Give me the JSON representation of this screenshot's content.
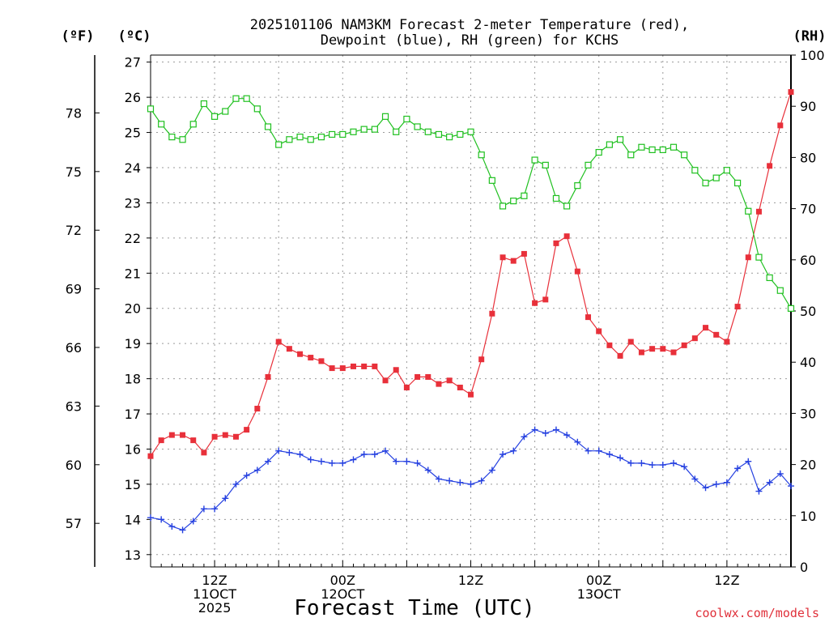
{
  "chart_data": {
    "type": "line",
    "title_line1": "2025101106 NAM3KM Forecast 2-meter Temperature (red),",
    "title_line2": "Dewpoint (blue), RH (green) for KCHS",
    "xlabel": "Forecast Time (UTC)",
    "credit": "coolwx.com/models",
    "unit_f": "(ºF)",
    "unit_c": "(ºC)",
    "unit_rh": "(RH)",
    "x_start_hour": 6,
    "x_end_hour": 66,
    "x_ticks": [
      {
        "hour": 12,
        "lines": [
          "12Z",
          "11OCT",
          "2025"
        ]
      },
      {
        "hour": 24,
        "lines": [
          "00Z",
          "12OCT"
        ]
      },
      {
        "hour": 36,
        "lines": [
          "12Z"
        ]
      },
      {
        "hour": 48,
        "lines": [
          "00Z",
          "13OCT"
        ]
      },
      {
        "hour": 60,
        "lines": [
          "12Z"
        ]
      }
    ],
    "ylim_c": [
      12.65,
      27.2
    ],
    "yticks_c": [
      13,
      14,
      15,
      16,
      17,
      18,
      19,
      20,
      21,
      22,
      23,
      24,
      25,
      26,
      27
    ],
    "yticks_f": [
      57,
      60,
      63,
      66,
      69,
      72,
      75,
      78
    ],
    "ylim_rh": [
      0,
      100
    ],
    "yticks_rh": [
      0,
      10,
      20,
      30,
      40,
      50,
      60,
      70,
      80,
      90,
      100
    ],
    "series": [
      {
        "name": "2-meter Temperature",
        "unit": "C",
        "color": "#e8303a",
        "marker": "filled-square",
        "values": [
          15.8,
          16.25,
          16.4,
          16.4,
          16.25,
          15.9,
          16.35,
          16.4,
          16.35,
          16.55,
          17.15,
          18.05,
          19.05,
          18.85,
          18.7,
          18.6,
          18.5,
          18.3,
          18.3,
          18.35,
          18.35,
          18.35,
          17.95,
          18.25,
          17.75,
          18.05,
          18.05,
          17.85,
          17.95,
          17.75,
          17.55,
          18.55,
          19.85,
          21.45,
          21.35,
          21.55,
          20.15,
          20.25,
          21.85,
          22.05,
          21.05,
          19.75,
          19.35,
          18.95,
          18.65,
          19.05,
          18.75,
          18.85,
          18.85,
          18.75,
          18.95,
          19.15,
          19.45,
          19.25,
          19.05,
          20.05,
          21.45,
          22.75,
          24.05,
          25.2,
          26.15
        ]
      },
      {
        "name": "Dewpoint",
        "unit": "C",
        "color": "#2540e0",
        "marker": "plus",
        "values": [
          14.05,
          14,
          13.8,
          13.7,
          13.95,
          14.3,
          14.3,
          14.6,
          15,
          15.25,
          15.4,
          15.65,
          15.95,
          15.9,
          15.85,
          15.7,
          15.65,
          15.6,
          15.6,
          15.7,
          15.85,
          15.85,
          15.95,
          15.65,
          15.65,
          15.6,
          15.4,
          15.15,
          15.1,
          15.05,
          15,
          15.1,
          15.4,
          15.85,
          15.95,
          16.35,
          16.55,
          16.45,
          16.55,
          16.4,
          16.2,
          15.95,
          15.95,
          15.85,
          15.75,
          15.6,
          15.6,
          15.55,
          15.55,
          15.6,
          15.5,
          15.15,
          14.9,
          15,
          15.05,
          15.45,
          15.65,
          14.8,
          15.05,
          15.3,
          14.95
        ]
      },
      {
        "name": "Relative Humidity",
        "unit": "%",
        "color": "#20c020",
        "marker": "open-square",
        "values": [
          89.5,
          86.5,
          84,
          83.5,
          86.5,
          90.5,
          88,
          89,
          91.5,
          91.5,
          89.5,
          86,
          82.5,
          83.5,
          84,
          83.5,
          84,
          84.5,
          84.5,
          85,
          85.5,
          85.5,
          88,
          85,
          87.5,
          86,
          85,
          84.5,
          84,
          84.5,
          85,
          80.5,
          75.5,
          70.5,
          71.5,
          72.5,
          79.5,
          78.5,
          72,
          70.5,
          74.5,
          78.5,
          81,
          82.5,
          83.5,
          80.5,
          82,
          81.5,
          81.5,
          82,
          80.5,
          77.5,
          75,
          76,
          77.5,
          75,
          69.5,
          60.5,
          56.5,
          54,
          50.5
        ]
      }
    ]
  }
}
